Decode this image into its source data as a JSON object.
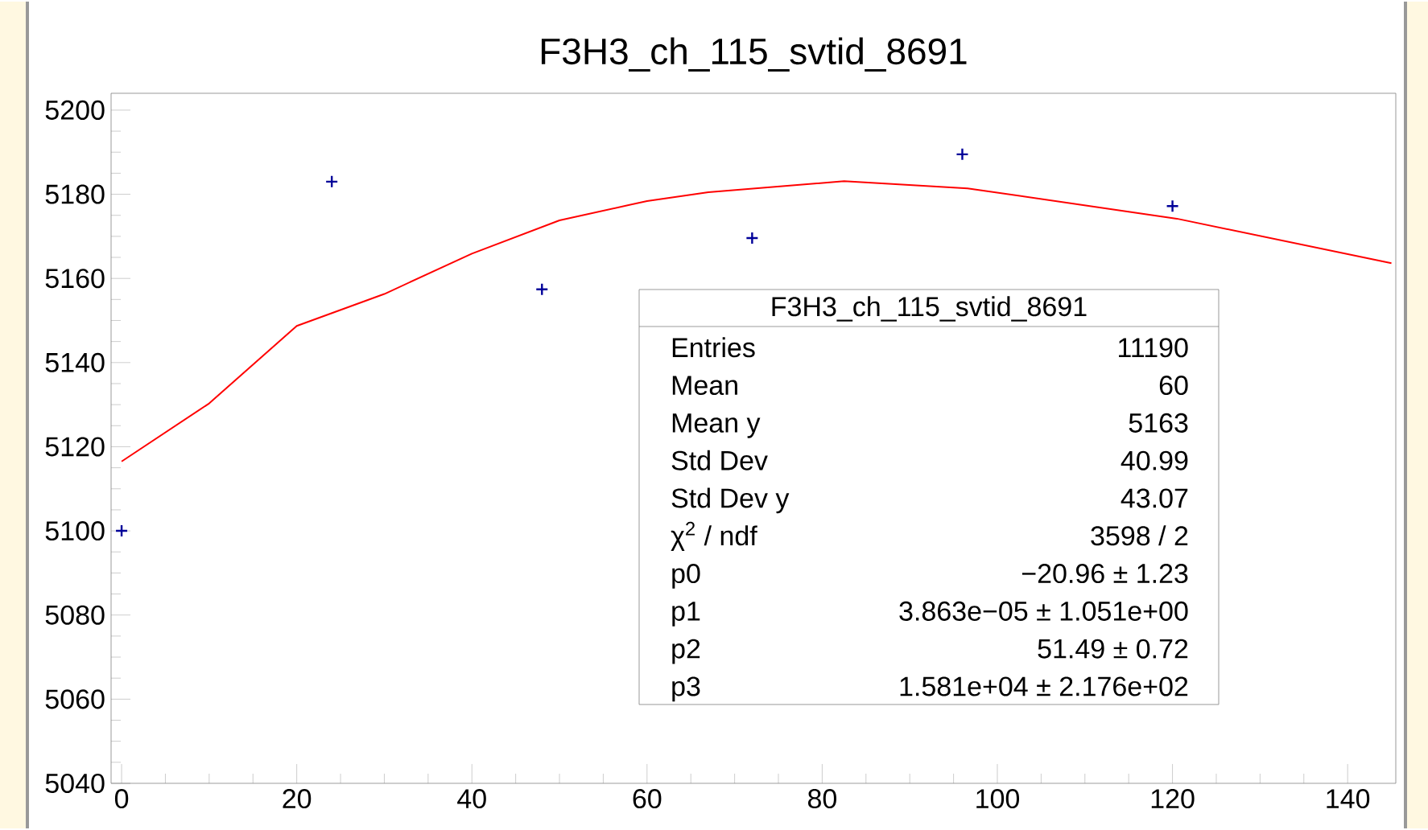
{
  "chart_data": {
    "type": "scatter",
    "title": "F3H3_ch_115_svtid_8691",
    "xlim": [
      -1.2,
      145.5
    ],
    "ylim": [
      5040,
      5204
    ],
    "xticks": [
      0,
      20,
      40,
      60,
      80,
      100,
      120,
      140
    ],
    "yticks": [
      5040,
      5060,
      5080,
      5100,
      5120,
      5140,
      5160,
      5180,
      5200
    ],
    "grid": false,
    "annotations": [
      "F3H3_ch_115_svtid_8691",
      "Entries",
      "11190",
      "Mean",
      "60",
      "Mean y",
      "5163",
      "Std Dev",
      "40.99",
      "Std Dev y",
      "43.07",
      "χ$^{2}$ / ndf",
      "3598 / 2",
      "p0",
      "−20.96 ± 1.23",
      "p1",
      "3.863e−05 ± 1.051e+00",
      "p2",
      "51.49 ± 0.72",
      "p3",
      "1.581e+04 ± 2.176e+02"
    ],
    "series": [
      {
        "marker": "cross",
        "color": "#000099",
        "x": [
          0,
          24,
          48,
          72,
          96,
          120
        ],
        "values": [
          5100,
          5183,
          5157.4,
          5169.6,
          5189.5,
          5177.2
        ]
      },
      {
        "type": "line",
        "color": "#ff0000",
        "x": [
          0,
          10,
          20,
          30,
          40,
          50,
          60,
          67,
          82.5,
          96.6,
          120.5,
          145
        ],
        "values": [
          5116.5,
          5130.3,
          5148.7,
          5156.3,
          5165.9,
          5173.8,
          5178.4,
          5180.5,
          5183.1,
          5181.4,
          5174.2,
          5163.6
        ]
      }
    ]
  }
}
